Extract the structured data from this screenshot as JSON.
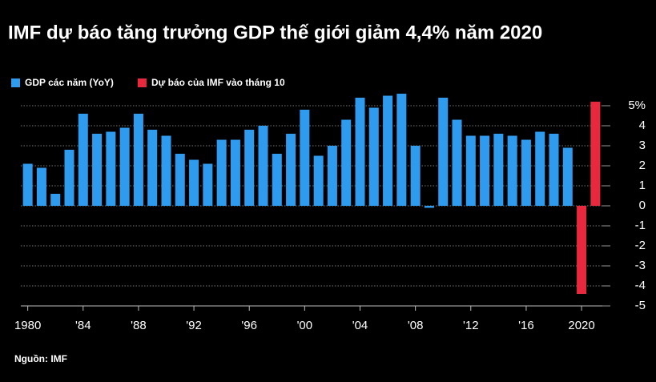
{
  "chart_data": {
    "type": "bar",
    "title": "IMF dự báo tăng trưởng GDP thế giới giảm 4,4% năm 2020",
    "source": "Nguồn: IMF",
    "categories": [
      "1980",
      null,
      null,
      null,
      "'84",
      null,
      null,
      null,
      "'88",
      null,
      null,
      null,
      "'92",
      null,
      null,
      null,
      "'96",
      null,
      null,
      null,
      "'00",
      null,
      null,
      null,
      "'04",
      null,
      null,
      null,
      "'08",
      null,
      null,
      null,
      "'12",
      null,
      null,
      null,
      "'16",
      null,
      null,
      null,
      "2020",
      null
    ],
    "series": [
      {
        "name": "GDP các năm (YoY)",
        "color": "#2e9bef",
        "values": [
          2.1,
          1.9,
          0.6,
          2.8,
          4.6,
          3.6,
          3.7,
          3.9,
          4.6,
          3.8,
          3.5,
          2.6,
          2.3,
          2.1,
          3.3,
          3.3,
          3.8,
          4.0,
          2.6,
          3.6,
          4.8,
          2.5,
          3.0,
          4.3,
          5.4,
          4.9,
          5.5,
          5.6,
          3.0,
          -0.1,
          5.4,
          4.3,
          3.5,
          3.5,
          3.6,
          3.5,
          3.3,
          3.7,
          3.6,
          2.9,
          null,
          null
        ]
      },
      {
        "name": "Dự báo của IMF vào tháng 10",
        "color": "#e8283c",
        "values": [
          null,
          null,
          null,
          null,
          null,
          null,
          null,
          null,
          null,
          null,
          null,
          null,
          null,
          null,
          null,
          null,
          null,
          null,
          null,
          null,
          null,
          null,
          null,
          null,
          null,
          null,
          null,
          null,
          null,
          null,
          null,
          null,
          null,
          null,
          null,
          null,
          null,
          null,
          null,
          null,
          -4.4,
          5.2
        ]
      }
    ],
    "ylim": [
      -5,
      6
    ],
    "yticks": [
      {
        "value": 5,
        "label": "5%"
      },
      4,
      3,
      2,
      1,
      0,
      -1,
      -2,
      -3,
      -4,
      -5
    ],
    "grid": true
  }
}
